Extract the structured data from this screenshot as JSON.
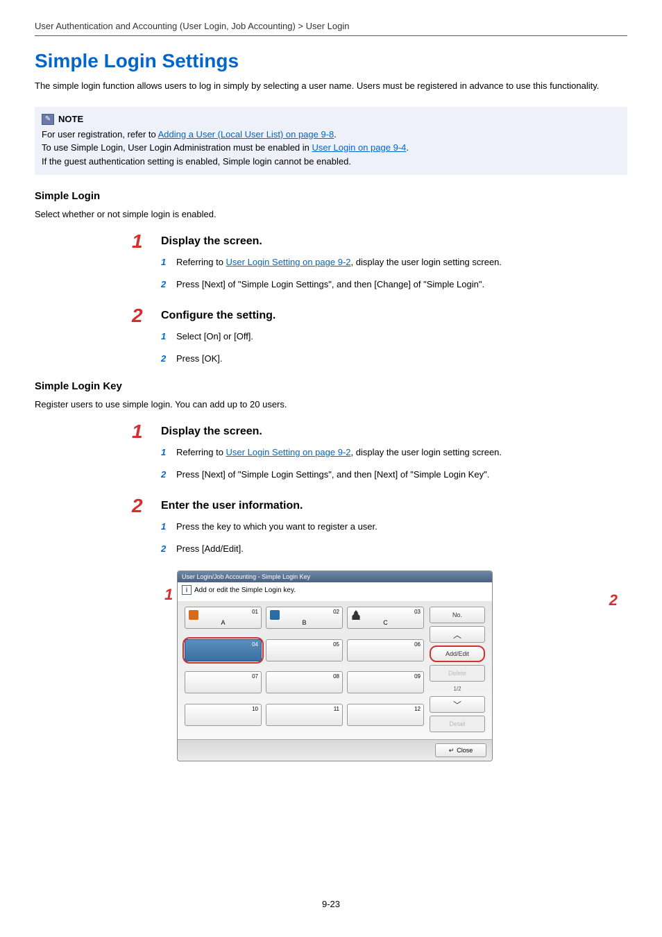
{
  "breadcrumb": "User Authentication and Accounting (User Login, Job Accounting) > User Login",
  "title": "Simple Login Settings",
  "intro": "The simple login function allows users to log in simply by selecting a user name. Users must be registered in advance to use this functionality.",
  "note": {
    "label": "NOTE",
    "line1_pre": "For user registration, refer to ",
    "line1_link": "Adding a User (Local User List) on page 9-8",
    "line1_post": ".",
    "line2_pre": "To use Simple Login, User Login Administration must be enabled in ",
    "line2_link": "User Login on page 9-4",
    "line2_post": ".",
    "line3": "If the guest authentication setting is enabled, Simple login cannot be enabled."
  },
  "section1": {
    "heading": "Simple Login",
    "desc": "Select whether or not simple login is enabled.",
    "step1": {
      "num": "1",
      "title": "Display the screen.",
      "sub1_num": "1",
      "sub1_pre": "Referring to ",
      "sub1_link": "User Login Setting on page 9-2",
      "sub1_post": ", display the user login setting screen.",
      "sub2_num": "2",
      "sub2": "Press [Next] of \"Simple Login Settings\", and then [Change] of \"Simple Login\"."
    },
    "step2": {
      "num": "2",
      "title": "Configure the setting.",
      "sub1_num": "1",
      "sub1": "Select [On] or [Off].",
      "sub2_num": "2",
      "sub2": "Press [OK]."
    }
  },
  "section2": {
    "heading": "Simple Login Key",
    "desc": "Register users to use simple login. You can add up to 20 users.",
    "step1": {
      "num": "1",
      "title": "Display the screen.",
      "sub1_num": "1",
      "sub1_pre": "Referring to ",
      "sub1_link": "User Login Setting on page 9-2",
      "sub1_post": ", display the user login setting screen.",
      "sub2_num": "2",
      "sub2": "Press [Next] of \"Simple Login Settings\", and then [Next] of \"Simple Login Key\"."
    },
    "step2": {
      "num": "2",
      "title": "Enter the user information.",
      "sub1_num": "1",
      "sub1": "Press the key to which you want to register a user.",
      "sub2_num": "2",
      "sub2": "Press [Add/Edit]."
    }
  },
  "panel": {
    "titlebar": "User Login/Job Accounting - Simple Login Key",
    "msg": "Add or edit the Simple Login key.",
    "keys": [
      {
        "n": "01",
        "label": "A",
        "icon": "orange"
      },
      {
        "n": "02",
        "label": "B",
        "icon": "blue"
      },
      {
        "n": "03",
        "label": "C",
        "icon": "person"
      },
      {
        "n": "04",
        "label": "",
        "selected": true
      },
      {
        "n": "05",
        "label": ""
      },
      {
        "n": "06",
        "label": ""
      },
      {
        "n": "07",
        "label": ""
      },
      {
        "n": "08",
        "label": ""
      },
      {
        "n": "09",
        "label": ""
      },
      {
        "n": "10",
        "label": ""
      },
      {
        "n": "11",
        "label": ""
      },
      {
        "n": "12",
        "label": ""
      }
    ],
    "no_btn": "No.",
    "addedit": "Add/Edit",
    "delete": "Delete",
    "detail": "Detail",
    "page": "1/2",
    "close": "Close",
    "callout1": "1",
    "callout2": "2"
  },
  "page_number": "9-23",
  "colors": {
    "link": "#0066cc",
    "red": "#d32f2f",
    "notebg": "#eef0fa"
  }
}
